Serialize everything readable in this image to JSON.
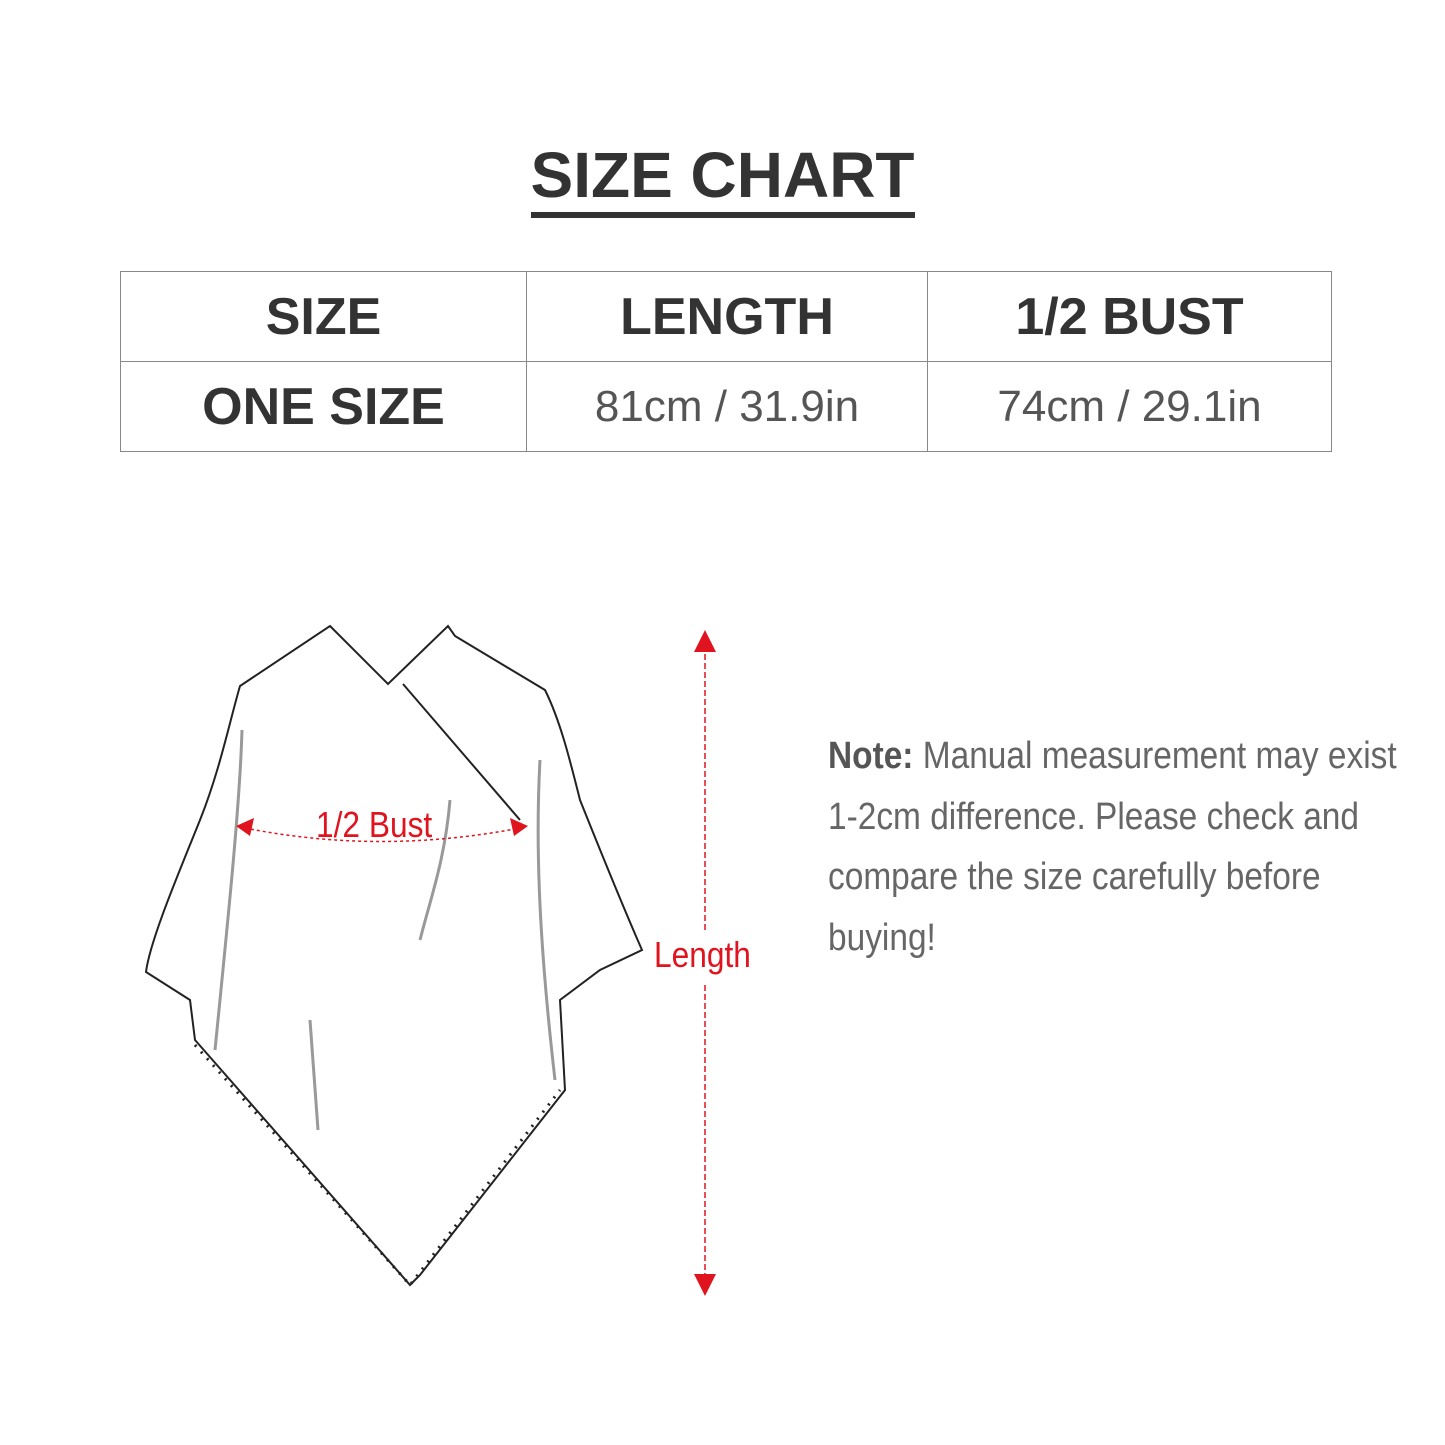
{
  "title": "SIZE CHART",
  "table": {
    "headers": [
      "SIZE",
      "LENGTH",
      "1/2 BUST"
    ],
    "rows": [
      [
        "ONE SIZE",
        "81cm / 31.9in",
        "74cm / 29.1in"
      ]
    ]
  },
  "diagram": {
    "bust_label": "1/2 Bust",
    "length_label": "Length",
    "accent_color": "#e0141e"
  },
  "note": {
    "label": "Note:",
    "text": "Manual measurement may exist 1-2cm difference. Please check and compare the size carefully before buying!"
  }
}
